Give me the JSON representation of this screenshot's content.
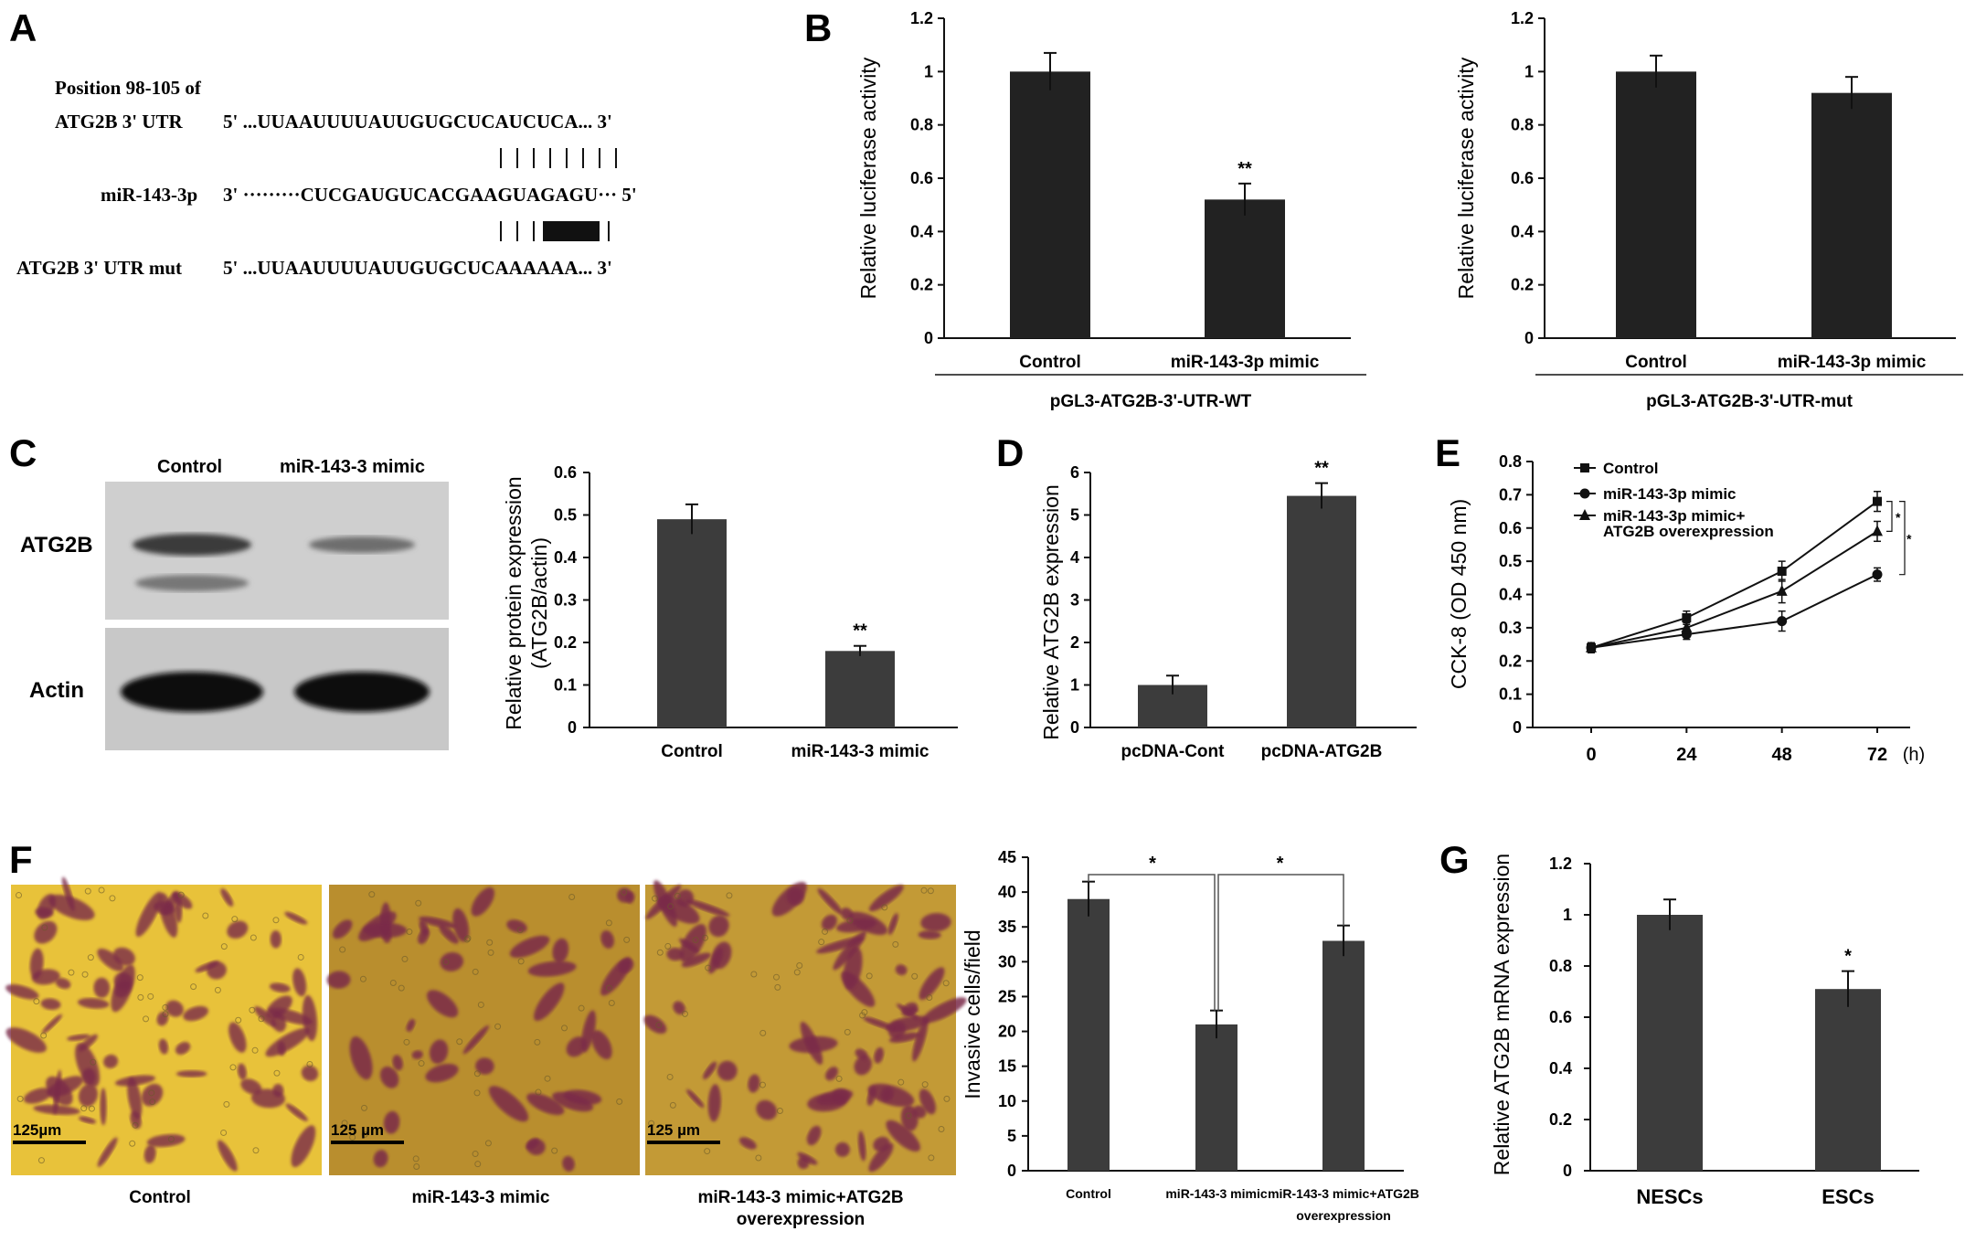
{
  "panels": {
    "A": {
      "letter": "A",
      "header": "Position 98-105 of",
      "wt_label": "ATG2B 3' UTR",
      "wt_seq": "5'  ...UUAAUUUUAUUGUGCUCAUCUCA... 3'",
      "mir_label": "miR-143-3p",
      "mir_seq": "3' ·········CUCGAUGUCACGAAGUAGAGU··· 5'",
      "mut_label": "ATG2B 3' UTR mut",
      "mut_seq": "5'  ...UUAAUUUUAUUGUGCUCAAAAAA... 3'"
    },
    "B": {
      "letter": "B"
    },
    "C": {
      "letter": "C",
      "blot_col1": "Control",
      "blot_col2": "miR-143-3  mimic",
      "row1": "ATG2B",
      "row2": "Actin"
    },
    "D": {
      "letter": "D"
    },
    "E": {
      "letter": "E"
    },
    "F": {
      "letter": "F",
      "scale1": "125µm",
      "scale2": "125 µm",
      "scale3": "125 µm",
      "cap1": "Control",
      "cap2": "miR-143-3  mimic",
      "cap3a": "miR-143-3  mimic+ATG2B",
      "cap3b": "overexpression"
    },
    "G": {
      "letter": "G"
    }
  },
  "colors": {
    "bar_dark": "#222222",
    "bar_gray": "#3c3c3c",
    "micrograph_bg": "#e8c23a",
    "stain": "#7a2a4a"
  },
  "chart_data": [
    {
      "id": "B-left",
      "type": "bar",
      "categories": [
        "Control",
        "miR-143-3p mimic"
      ],
      "values": [
        1.0,
        0.52
      ],
      "errors": [
        0.07,
        0.06
      ],
      "annotations": [
        "",
        "**"
      ],
      "ylabel": "Relative luciferase activity",
      "ylim": [
        0,
        1.2
      ],
      "yticks": [
        "0",
        "0.2",
        "0.4",
        "0.6",
        "0.8",
        "1",
        "1.2"
      ],
      "group_label": "pGL3-ATG2B-3'-UTR-WT"
    },
    {
      "id": "B-right",
      "type": "bar",
      "categories": [
        "Control",
        "miR-143-3p mimic"
      ],
      "values": [
        1.0,
        0.92
      ],
      "errors": [
        0.06,
        0.06
      ],
      "annotations": [
        "",
        ""
      ],
      "ylabel": "Relative luciferase activity",
      "ylim": [
        0,
        1.2
      ],
      "yticks": [
        "0",
        "0.2",
        "0.4",
        "0.6",
        "0.8",
        "1",
        "1.2"
      ],
      "group_label": "pGL3-ATG2B-3'-UTR-mut"
    },
    {
      "id": "C-bar",
      "type": "bar",
      "categories": [
        "Control",
        "miR-143-3  mimic"
      ],
      "values": [
        0.49,
        0.18
      ],
      "errors": [
        0.035,
        0.012
      ],
      "annotations": [
        "",
        "**"
      ],
      "ylabel_line1": "Relative protein expression",
      "ylabel_line2": "(ATG2B/actin)",
      "ylim": [
        0,
        0.6
      ],
      "yticks": [
        "0",
        "0.1",
        "0.2",
        "0.3",
        "0.4",
        "0.5",
        "0.6"
      ]
    },
    {
      "id": "D",
      "type": "bar",
      "categories": [
        "pcDNA-Cont",
        "pcDNA-ATG2B"
      ],
      "values": [
        1.0,
        5.45
      ],
      "errors": [
        0.22,
        0.3
      ],
      "annotations": [
        "",
        "**"
      ],
      "ylabel": "Relative ATG2B expression",
      "ylim": [
        0,
        6
      ],
      "yticks": [
        "0",
        "1",
        "2",
        "3",
        "4",
        "5",
        "6"
      ]
    },
    {
      "id": "E",
      "type": "line",
      "x": [
        0,
        24,
        48,
        72
      ],
      "xticks": [
        "0",
        "24",
        "48",
        "72"
      ],
      "xunit": "(h)",
      "ylabel": "CCK-8 (OD 450 nm)",
      "ylim": [
        0,
        0.8
      ],
      "yticks": [
        "0",
        "0.1",
        "0.2",
        "0.3",
        "0.4",
        "0.5",
        "0.6",
        "0.7",
        "0.8"
      ],
      "series": [
        {
          "name": "Control",
          "values": [
            0.24,
            0.33,
            0.47,
            0.68
          ],
          "errors": [
            0.015,
            0.02,
            0.03,
            0.03
          ],
          "marker": "square"
        },
        {
          "name": "miR-143-3p mimic",
          "values": [
            0.24,
            0.28,
            0.32,
            0.46
          ],
          "errors": [
            0.015,
            0.015,
            0.03,
            0.02
          ],
          "marker": "circle"
        },
        {
          "name": "miR-143-3p mimic+\nATG2B overexpression",
          "values": [
            0.24,
            0.3,
            0.41,
            0.59
          ],
          "errors": [
            0.015,
            0.015,
            0.035,
            0.03
          ],
          "marker": "triangle"
        }
      ],
      "legend_lines": [
        "Control",
        "miR-143-3p mimic",
        "miR-143-3p mimic+",
        "ATG2B overexpression"
      ],
      "sig_marks": [
        "*",
        "*"
      ]
    },
    {
      "id": "F-bar",
      "type": "bar",
      "categories": [
        "Control",
        "miR-143-3  mimic",
        "miR-143-3  mimic+ATG2B"
      ],
      "category_extra": "overexpression",
      "values": [
        39,
        21,
        33
      ],
      "errors": [
        2.5,
        2.0,
        2.2
      ],
      "ylabel": "Invasive cells/field",
      "ylim": [
        0,
        45
      ],
      "yticks": [
        "0",
        "5",
        "10",
        "15",
        "20",
        "25",
        "30",
        "35",
        "40",
        "45"
      ],
      "sig_marks": [
        "*",
        "*"
      ]
    },
    {
      "id": "G",
      "type": "bar",
      "categories": [
        "NESCs",
        "ESCs"
      ],
      "values": [
        1.0,
        0.71
      ],
      "errors": [
        0.06,
        0.07
      ],
      "annotations": [
        "",
        "*"
      ],
      "ylabel": "Relative ATG2B mRNA expression",
      "ylim": [
        0,
        1.2
      ],
      "yticks": [
        "0",
        "0.2",
        "0.4",
        "0.6",
        "0.8",
        "1",
        "1.2"
      ]
    }
  ]
}
